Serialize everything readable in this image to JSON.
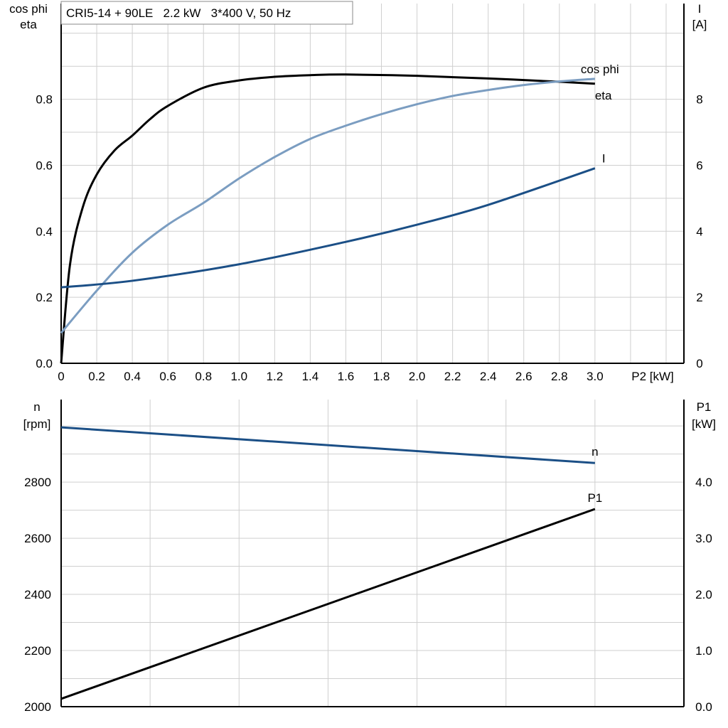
{
  "chart_data": [
    {
      "type": "line",
      "title": "CRI5-14 + 90LE   2.2 kW   3*400 V, 50 Hz",
      "xlabel": "P2 [kW]",
      "ylabel_left": [
        "cos phi",
        "eta"
      ],
      "ylabel_right": [
        "I",
        "[A]"
      ],
      "xlim": [
        0,
        3.5
      ],
      "ylim_left": [
        0,
        1.09
      ],
      "ylim_right": [
        0,
        10.9
      ],
      "x_ticks": [
        "0",
        "0.2",
        "0.4",
        "0.6",
        "0.8",
        "1.0",
        "1.2",
        "1.4",
        "1.6",
        "1.8",
        "2.0",
        "2.2",
        "2.4",
        "2.6",
        "2.8",
        "3.0"
      ],
      "y_ticks_left": [
        "0.0",
        "0.2",
        "0.4",
        "0.6",
        "0.8"
      ],
      "y_ticks_right": [
        "0",
        "2",
        "4",
        "6",
        "8"
      ],
      "grid": true,
      "series": [
        {
          "name": "eta",
          "axis": "left",
          "color": "#000000",
          "x": [
            0,
            0.05,
            0.12,
            0.2,
            0.3,
            0.4,
            0.5,
            0.6,
            0.8,
            1.0,
            1.2,
            1.4,
            1.6,
            2.0,
            2.4,
            2.8,
            3.0
          ],
          "y": [
            0,
            0.3,
            0.47,
            0.572,
            0.645,
            0.69,
            0.74,
            0.78,
            0.835,
            0.857,
            0.868,
            0.873,
            0.875,
            0.871,
            0.863,
            0.853,
            0.847
          ]
        },
        {
          "name": "cos phi",
          "axis": "left",
          "color": "#7b9dc1",
          "x": [
            0,
            0.2,
            0.4,
            0.6,
            0.8,
            1.0,
            1.2,
            1.4,
            1.6,
            1.8,
            2.0,
            2.2,
            2.4,
            2.6,
            2.8,
            3.0
          ],
          "y": [
            0.092,
            0.22,
            0.335,
            0.42,
            0.486,
            0.56,
            0.625,
            0.68,
            0.72,
            0.755,
            0.785,
            0.81,
            0.828,
            0.843,
            0.854,
            0.862
          ]
        },
        {
          "name": "I",
          "axis": "right",
          "color": "#1b4f86",
          "x": [
            0,
            0.4,
            1.0,
            1.6,
            2.0,
            2.4,
            3.0
          ],
          "y": [
            2.3,
            2.5,
            3.0,
            3.68,
            4.2,
            4.8,
            5.91
          ]
        }
      ]
    },
    {
      "type": "line",
      "xlim": [
        0,
        3.5
      ],
      "ylabel_left": [
        "n",
        "[rpm]"
      ],
      "ylabel_right": [
        "P1",
        "[kW]"
      ],
      "ylim_left": [
        2000,
        3094
      ],
      "ylim_right": [
        0,
        5.47
      ],
      "y_ticks_left": [
        "2000",
        "2200",
        "2400",
        "2600",
        "2800"
      ],
      "y_ticks_right": [
        "0.0",
        "1.0",
        "2.0",
        "3.0",
        "4.0"
      ],
      "grid": true,
      "series": [
        {
          "name": "n",
          "axis": "left",
          "color": "#1b4f86",
          "x": [
            0,
            3.0
          ],
          "y": [
            2995,
            2868
          ]
        },
        {
          "name": "P1",
          "axis": "right",
          "color": "#000000",
          "x": [
            0,
            3.0
          ],
          "y": [
            0.14,
            3.52
          ]
        }
      ]
    }
  ]
}
